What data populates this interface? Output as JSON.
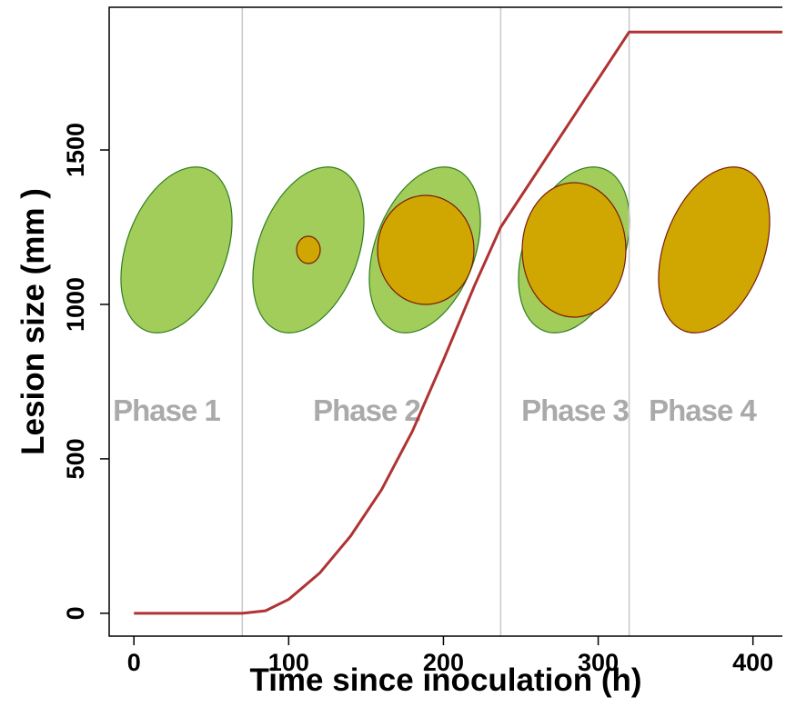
{
  "chart_data": {
    "type": "line",
    "xlabel": "Time since inoculation (h)",
    "ylabel": "Lesion size (mm )",
    "x": [
      0,
      70,
      85,
      100,
      120,
      140,
      160,
      180,
      200,
      220,
      237,
      320,
      419
    ],
    "series": [
      {
        "name": "Lesion size",
        "color": "#b03232",
        "values": [
          0,
          0,
          8,
          45,
          130,
          250,
          400,
          590,
          820,
          1060,
          1250,
          1882,
          1882
        ]
      }
    ],
    "phase_boundaries": [
      70,
      237,
      320
    ],
    "annotations": [
      "Phase 1",
      "Phase 2",
      "Phase 3",
      "Phase 4"
    ],
    "xlim": [
      -16,
      419
    ],
    "ylim": [
      -74,
      1962
    ],
    "xticks": [
      0,
      100,
      200,
      300,
      400
    ],
    "yticks": [
      0,
      500,
      1000,
      1500
    ]
  }
}
